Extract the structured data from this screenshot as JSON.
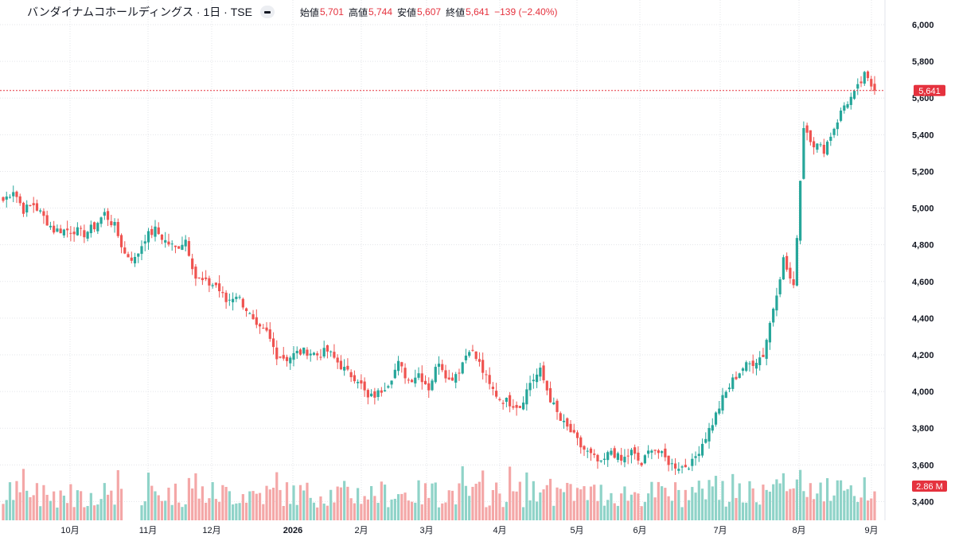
{
  "legend": {
    "symbol": "バンダイナムコホールディングス · 1日 · TSE",
    "open_label": "始値",
    "open": "5,701",
    "high_label": "高値",
    "high": "5,744",
    "low_label": "安値",
    "low": "5,607",
    "close_label": "終値",
    "close": "5,641",
    "change": "−139 (−2.40%)"
  },
  "colors": {
    "up": "#26a69a",
    "down": "#ef5350",
    "up_vol": "#8fd3c8",
    "down_vol": "#f4a7a7",
    "accent": "#e5323e",
    "grid": "#e3e5ea"
  },
  "icons": {
    "toggle": "collapse-toggle-icon"
  },
  "chart_data": {
    "type": "candlestick",
    "ylim": [
      3320,
      6040
    ],
    "y_ticks": [
      "3,400",
      "3,600",
      "3,800",
      "4,000",
      "4,200",
      "4,400",
      "4,600",
      "4,800",
      "5,000",
      "5,200",
      "5,400",
      "5,600",
      "5,800",
      "6,000"
    ],
    "y_tick_values": [
      3400,
      3600,
      3800,
      4000,
      4200,
      4400,
      4600,
      4800,
      5000,
      5200,
      5400,
      5600,
      5800,
      6000
    ],
    "x_ticks": [
      "10月",
      "11月",
      "12月",
      "2026",
      "2月",
      "3月",
      "4月",
      "5月",
      "6月",
      "7月",
      "8月",
      "9月"
    ],
    "last_price_label": "5,641",
    "last_price": 5641,
    "volume_label": "2.86 M",
    "volume_max": 7.5,
    "anchors": [
      [
        0,
        5040
      ],
      [
        3,
        5100
      ],
      [
        6,
        4990
      ],
      [
        9,
        5020
      ],
      [
        12,
        4950
      ],
      [
        15,
        4880
      ],
      [
        18,
        4880
      ],
      [
        21,
        4880
      ],
      [
        24,
        4860
      ],
      [
        27,
        4900
      ],
      [
        30,
        4970
      ],
      [
        33,
        4900
      ],
      [
        36,
        4750
      ],
      [
        39,
        4720
      ],
      [
        42,
        4840
      ],
      [
        45,
        4880
      ],
      [
        48,
        4820
      ],
      [
        51,
        4780
      ],
      [
        54,
        4830
      ],
      [
        57,
        4620
      ],
      [
        60,
        4590
      ],
      [
        63,
        4580
      ],
      [
        66,
        4490
      ],
      [
        69,
        4530
      ],
      [
        72,
        4450
      ],
      [
        75,
        4340
      ],
      [
        78,
        4320
      ],
      [
        81,
        4200
      ],
      [
        84,
        4180
      ],
      [
        87,
        4210
      ],
      [
        90,
        4220
      ],
      [
        93,
        4200
      ],
      [
        96,
        4220
      ],
      [
        99,
        4160
      ],
      [
        102,
        4100
      ],
      [
        105,
        4070
      ],
      [
        108,
        3960
      ],
      [
        111,
        3990
      ],
      [
        114,
        4050
      ],
      [
        117,
        4150
      ],
      [
        120,
        4060
      ],
      [
        123,
        4100
      ],
      [
        126,
        4020
      ],
      [
        129,
        4170
      ],
      [
        132,
        4060
      ],
      [
        135,
        4120
      ],
      [
        138,
        4240
      ],
      [
        141,
        4150
      ],
      [
        144,
        4030
      ],
      [
        147,
        3960
      ],
      [
        150,
        3940
      ],
      [
        153,
        3920
      ],
      [
        156,
        4050
      ],
      [
        159,
        4110
      ],
      [
        162,
        3960
      ],
      [
        165,
        3840
      ],
      [
        168,
        3780
      ],
      [
        171,
        3700
      ],
      [
        174,
        3650
      ],
      [
        177,
        3600
      ],
      [
        180,
        3680
      ],
      [
        183,
        3620
      ],
      [
        186,
        3670
      ],
      [
        189,
        3600
      ],
      [
        192,
        3700
      ],
      [
        195,
        3650
      ],
      [
        198,
        3600
      ],
      [
        201,
        3590
      ],
      [
        204,
        3610
      ],
      [
        207,
        3720
      ],
      [
        210,
        3830
      ],
      [
        213,
        3960
      ],
      [
        216,
        4060
      ],
      [
        219,
        4130
      ],
      [
        222,
        4160
      ],
      [
        225,
        4200
      ],
      [
        228,
        4460
      ],
      [
        231,
        4720
      ],
      [
        234,
        4560
      ],
      [
        237,
        5450
      ],
      [
        240,
        5350
      ],
      [
        243,
        5320
      ],
      [
        246,
        5440
      ],
      [
        249,
        5560
      ],
      [
        252,
        5620
      ],
      [
        255,
        5720
      ],
      [
        258,
        5641
      ]
    ],
    "series": [
      {
        "name": "",
        "values": []
      }
    ]
  }
}
